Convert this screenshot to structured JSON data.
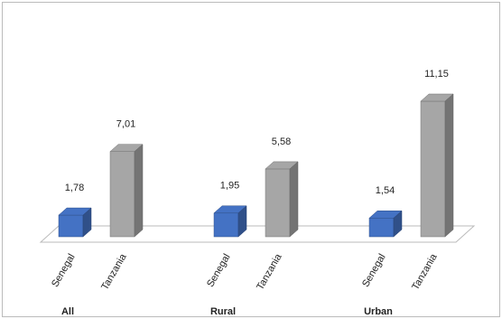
{
  "chart_data": {
    "type": "bar3d",
    "categories": [
      "All",
      "Rural",
      "Urban"
    ],
    "series": [
      {
        "name": "Senegal",
        "color": "#4472c4",
        "values": [
          1.78,
          1.95,
          1.54
        ],
        "value_labels": [
          "1,78",
          "1,95",
          "1,54"
        ]
      },
      {
        "name": "Tanzania",
        "color": "#a6a6a6",
        "values": [
          7.01,
          5.58,
          11.15
        ],
        "value_labels": [
          "7,01",
          "5,58",
          "11,15"
        ]
      }
    ]
  }
}
